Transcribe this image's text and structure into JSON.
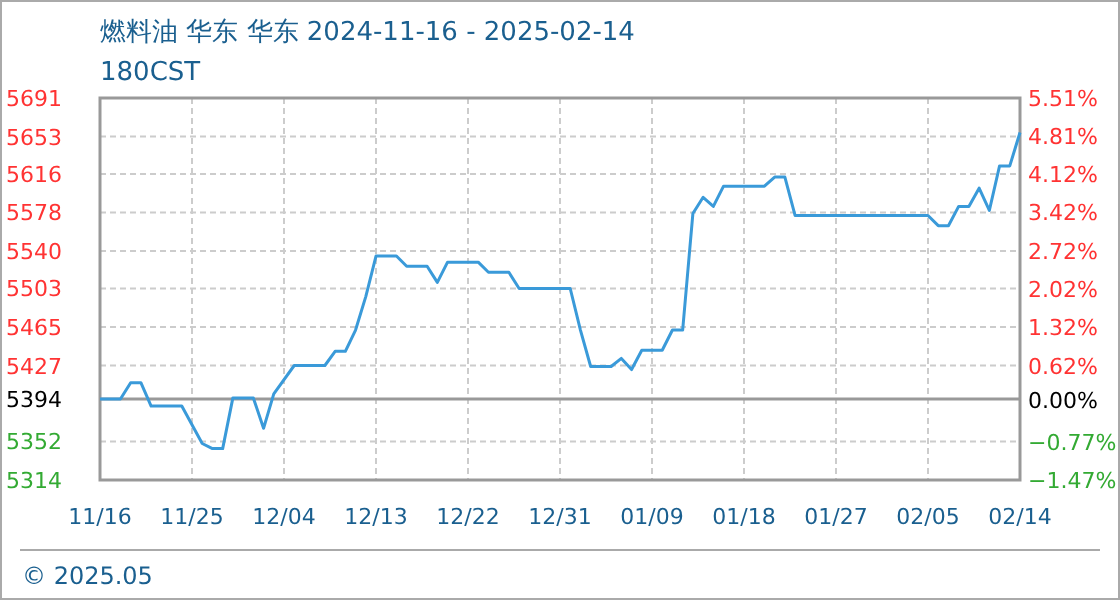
{
  "chart_data": {
    "type": "line",
    "title": "燃料油 华东 华东 2024-11-16 - 2025-02-14",
    "subtitle": "180CST",
    "annotations": [
      "© 2025.05"
    ],
    "x": [
      "2024-11-16",
      "2024-11-18",
      "2024-11-19",
      "2024-11-20",
      "2024-11-21",
      "2024-11-24",
      "2024-11-26",
      "2024-11-27",
      "2024-11-28",
      "2024-11-29",
      "2024-12-01",
      "2024-12-02",
      "2024-12-03",
      "2024-12-05",
      "2024-12-08",
      "2024-12-09",
      "2024-12-10",
      "2024-12-11",
      "2024-12-12",
      "2024-12-13",
      "2024-12-15",
      "2024-12-16",
      "2024-12-18",
      "2024-12-19",
      "2024-12-20",
      "2024-12-23",
      "2024-12-24",
      "2024-12-26",
      "2024-12-27",
      "2025-01-01",
      "2025-01-02",
      "2025-01-03",
      "2025-01-05",
      "2025-01-06",
      "2025-01-07",
      "2025-01-08",
      "2025-01-10",
      "2025-01-11",
      "2025-01-12",
      "2025-01-13",
      "2025-01-14",
      "2025-01-15",
      "2025-01-16",
      "2025-01-20",
      "2025-01-21",
      "2025-01-22",
      "2025-01-23",
      "2025-02-05",
      "2025-02-06",
      "2025-02-07",
      "2025-02-08",
      "2025-02-09",
      "2025-02-10",
      "2025-02-11",
      "2025-02-12",
      "2025-02-13",
      "2025-02-14"
    ],
    "series": [
      {
        "color": "#3a9ad9",
        "values": [
          5394,
          5394,
          5410,
          5410,
          5387,
          5387,
          5350,
          5345,
          5345,
          5395,
          5395,
          5365,
          5399,
          5427,
          5427,
          5441,
          5441,
          5462,
          5495,
          5535,
          5535,
          5525,
          5525,
          5509,
          5529,
          5529,
          5519,
          5519,
          5503,
          5503,
          5462,
          5426,
          5426,
          5434,
          5423,
          5442,
          5442,
          5462,
          5462,
          5577,
          5593,
          5584,
          5604,
          5604,
          5613,
          5613,
          5575,
          5575,
          5565,
          5565,
          5584,
          5584,
          5602,
          5580,
          5624,
          5624,
          5657
        ]
      }
    ],
    "xlim": [
      "2024-11-16",
      "2025-02-14"
    ],
    "xticks": [
      {
        "value": "2024-11-16",
        "label": "11/16"
      },
      {
        "value": "2024-11-25",
        "label": "11/25"
      },
      {
        "value": "2024-12-04",
        "label": "12/04"
      },
      {
        "value": "2024-12-13",
        "label": "12/13"
      },
      {
        "value": "2024-12-22",
        "label": "12/22"
      },
      {
        "value": "2024-12-31",
        "label": "12/31"
      },
      {
        "value": "2025-01-09",
        "label": "01/09"
      },
      {
        "value": "2025-01-18",
        "label": "01/18"
      },
      {
        "value": "2025-01-27",
        "label": "01/27"
      },
      {
        "value": "2025-02-05",
        "label": "02/05"
      },
      {
        "value": "2025-02-14",
        "label": "02/14"
      }
    ],
    "ylim": [
      5314,
      5691
    ],
    "yticks": [
      5314,
      5352,
      5394,
      5427,
      5465,
      5503,
      5540,
      5578,
      5616,
      5653,
      5691
    ],
    "y2lim": [
      -1.47,
      5.51
    ],
    "y2ticks": [
      {
        "value": -1.47,
        "label": "−1.47%"
      },
      {
        "value": -0.77,
        "label": "−0.77%"
      },
      {
        "value": 0,
        "label": "0.00%"
      },
      {
        "value": 0.62,
        "label": "0.62%"
      },
      {
        "value": 1.32,
        "label": "1.32%"
      },
      {
        "value": 2.02,
        "label": "2.02%"
      },
      {
        "value": 2.72,
        "label": "2.72%"
      },
      {
        "value": 3.42,
        "label": "3.42%"
      },
      {
        "value": 4.12,
        "label": "4.12%"
      },
      {
        "value": 4.81,
        "label": "4.81%"
      },
      {
        "value": 5.51,
        "label": "5.51%"
      }
    ],
    "ref_lines": [
      {
        "axis": "y",
        "value": 5394,
        "color": "#999999"
      }
    ],
    "grid": true,
    "marker": "none",
    "line_style": "solid"
  }
}
